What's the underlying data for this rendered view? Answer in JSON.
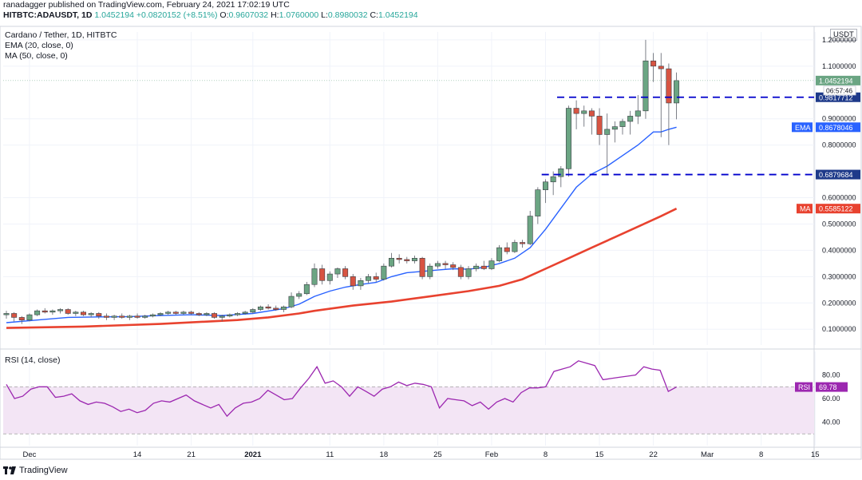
{
  "header": {
    "author_line": "ranadagger published on TradingView.com, February 24, 2021 17:02:19 UTC",
    "symbol": "HITBTC:ADAUSDT, 1D",
    "close": "1.0452194",
    "change": "+0.0820152 (+8.51%)",
    "o_label": "O:",
    "o_value": "0.9607032",
    "h_label": "H:",
    "h_value": "1.0760000",
    "l_label": "L:",
    "l_value": "0.8980032",
    "c_label": "C:",
    "c_value": "1.0452194"
  },
  "legend": {
    "title": "Cardano / Tether, 1D, HITBTC",
    "ema": "EMA (20, close, 0)",
    "ma": "MA (50, close, 0)",
    "rsi": "RSI (14, close)",
    "currency": "USDT"
  },
  "footer": {
    "brand": "TradingView"
  },
  "colors": {
    "up": "#26a69a",
    "up_body": "#6ba583",
    "down": "#d75442",
    "ema": "#2962ff",
    "ma": "#e8422f",
    "rsi": "#9c27b0",
    "rsi_band": "#f3e5f5",
    "dashed": "#0000cc",
    "axis_label_bg": "#1e3a8a"
  },
  "chart_data": [
    {
      "type": "candlestick",
      "title": "Cardano / Tether, 1D, HITBTC",
      "ylabel": "USDT",
      "ylim": [
        0.04,
        1.23
      ],
      "price_ticks": [
        "1.2000000",
        "1.1000000",
        "0.9000000",
        "0.8000000",
        "0.6000000",
        "0.5000000",
        "0.4000000",
        "0.3000000",
        "0.2000000",
        "0.1000000"
      ],
      "price_tick_values": [
        1.2,
        1.1,
        0.9,
        0.8,
        0.6,
        0.5,
        0.4,
        0.3,
        0.2,
        0.1
      ],
      "x_ticks": [
        "Dec",
        "14",
        "21",
        "2021",
        "11",
        "18",
        "25",
        "Feb",
        "8",
        "15",
        "22",
        "Mar",
        "8",
        "15"
      ],
      "x_tick_days": [
        3,
        17,
        24,
        32,
        42,
        49,
        56,
        63,
        70,
        77,
        84,
        91,
        98,
        105
      ],
      "candles": [
        [
          0,
          0.155,
          0.17,
          0.14,
          0.16
        ],
        [
          1,
          0.16,
          0.165,
          0.13,
          0.145
        ],
        [
          2,
          0.145,
          0.15,
          0.12,
          0.135
        ],
        [
          3,
          0.135,
          0.16,
          0.13,
          0.155
        ],
        [
          4,
          0.155,
          0.175,
          0.15,
          0.17
        ],
        [
          5,
          0.17,
          0.18,
          0.16,
          0.165
        ],
        [
          6,
          0.165,
          0.175,
          0.155,
          0.17
        ],
        [
          7,
          0.17,
          0.18,
          0.16,
          0.175
        ],
        [
          8,
          0.175,
          0.18,
          0.155,
          0.16
        ],
        [
          9,
          0.16,
          0.17,
          0.15,
          0.165
        ],
        [
          10,
          0.165,
          0.17,
          0.15,
          0.155
        ],
        [
          11,
          0.155,
          0.165,
          0.145,
          0.16
        ],
        [
          12,
          0.16,
          0.165,
          0.14,
          0.15
        ],
        [
          13,
          0.15,
          0.16,
          0.135,
          0.145
        ],
        [
          14,
          0.145,
          0.155,
          0.135,
          0.15
        ],
        [
          15,
          0.15,
          0.16,
          0.14,
          0.145
        ],
        [
          16,
          0.145,
          0.155,
          0.135,
          0.15
        ],
        [
          17,
          0.15,
          0.16,
          0.14,
          0.145
        ],
        [
          18,
          0.145,
          0.155,
          0.14,
          0.15
        ],
        [
          19,
          0.15,
          0.16,
          0.145,
          0.155
        ],
        [
          20,
          0.155,
          0.165,
          0.15,
          0.16
        ],
        [
          21,
          0.16,
          0.17,
          0.155,
          0.165
        ],
        [
          22,
          0.165,
          0.17,
          0.155,
          0.16
        ],
        [
          23,
          0.16,
          0.17,
          0.155,
          0.165
        ],
        [
          24,
          0.165,
          0.17,
          0.155,
          0.16
        ],
        [
          25,
          0.16,
          0.165,
          0.15,
          0.155
        ],
        [
          26,
          0.155,
          0.165,
          0.15,
          0.16
        ],
        [
          27,
          0.16,
          0.165,
          0.14,
          0.145
        ],
        [
          28,
          0.145,
          0.155,
          0.13,
          0.15
        ],
        [
          29,
          0.15,
          0.16,
          0.145,
          0.155
        ],
        [
          30,
          0.155,
          0.165,
          0.15,
          0.16
        ],
        [
          31,
          0.16,
          0.17,
          0.155,
          0.165
        ],
        [
          32,
          0.165,
          0.18,
          0.16,
          0.175
        ],
        [
          33,
          0.175,
          0.19,
          0.17,
          0.185
        ],
        [
          34,
          0.185,
          0.195,
          0.175,
          0.18
        ],
        [
          35,
          0.18,
          0.19,
          0.17,
          0.175
        ],
        [
          36,
          0.175,
          0.19,
          0.165,
          0.185
        ],
        [
          37,
          0.185,
          0.24,
          0.18,
          0.225
        ],
        [
          38,
          0.225,
          0.245,
          0.215,
          0.235
        ],
        [
          39,
          0.235,
          0.28,
          0.23,
          0.27
        ],
        [
          40,
          0.27,
          0.35,
          0.26,
          0.33
        ],
        [
          41,
          0.33,
          0.345,
          0.27,
          0.285
        ],
        [
          42,
          0.285,
          0.32,
          0.27,
          0.31
        ],
        [
          43,
          0.31,
          0.335,
          0.295,
          0.33
        ],
        [
          44,
          0.33,
          0.34,
          0.29,
          0.3
        ],
        [
          45,
          0.3,
          0.31,
          0.25,
          0.265
        ],
        [
          46,
          0.265,
          0.295,
          0.25,
          0.285
        ],
        [
          47,
          0.285,
          0.31,
          0.275,
          0.3
        ],
        [
          48,
          0.3,
          0.315,
          0.28,
          0.29
        ],
        [
          49,
          0.29,
          0.35,
          0.285,
          0.34
        ],
        [
          50,
          0.34,
          0.39,
          0.335,
          0.37
        ],
        [
          51,
          0.37,
          0.385,
          0.35,
          0.365
        ],
        [
          52,
          0.365,
          0.375,
          0.35,
          0.36
        ],
        [
          53,
          0.36,
          0.38,
          0.35,
          0.37
        ],
        [
          54,
          0.37,
          0.375,
          0.29,
          0.3
        ],
        [
          55,
          0.3,
          0.35,
          0.29,
          0.34
        ],
        [
          56,
          0.34,
          0.36,
          0.33,
          0.35
        ],
        [
          57,
          0.35,
          0.36,
          0.33,
          0.345
        ],
        [
          58,
          0.345,
          0.355,
          0.325,
          0.335
        ],
        [
          59,
          0.335,
          0.345,
          0.29,
          0.3
        ],
        [
          60,
          0.3,
          0.34,
          0.29,
          0.33
        ],
        [
          61,
          0.33,
          0.35,
          0.32,
          0.34
        ],
        [
          62,
          0.34,
          0.36,
          0.325,
          0.33
        ],
        [
          63,
          0.33,
          0.37,
          0.325,
          0.36
        ],
        [
          64,
          0.36,
          0.42,
          0.355,
          0.41
        ],
        [
          65,
          0.41,
          0.43,
          0.385,
          0.395
        ],
        [
          66,
          0.395,
          0.44,
          0.39,
          0.43
        ],
        [
          67,
          0.43,
          0.44,
          0.41,
          0.425
        ],
        [
          68,
          0.425,
          0.55,
          0.42,
          0.53
        ],
        [
          69,
          0.53,
          0.64,
          0.5,
          0.63
        ],
        [
          70,
          0.63,
          0.67,
          0.58,
          0.66
        ],
        [
          71,
          0.66,
          0.7,
          0.61,
          0.68
        ],
        [
          72,
          0.68,
          0.72,
          0.64,
          0.71
        ],
        [
          73,
          0.71,
          0.95,
          0.68,
          0.94
        ],
        [
          74,
          0.94,
          0.97,
          0.86,
          0.92
        ],
        [
          75,
          0.92,
          0.95,
          0.87,
          0.93
        ],
        [
          76,
          0.93,
          0.94,
          0.84,
          0.91
        ],
        [
          77,
          0.91,
          0.94,
          0.8,
          0.84
        ],
        [
          78,
          0.84,
          0.92,
          0.69,
          0.86
        ],
        [
          79,
          0.86,
          0.89,
          0.81,
          0.87
        ],
        [
          80,
          0.87,
          0.9,
          0.84,
          0.89
        ],
        [
          81,
          0.89,
          0.93,
          0.84,
          0.91
        ],
        [
          82,
          0.91,
          0.99,
          0.88,
          0.93
        ],
        [
          83,
          0.93,
          1.2,
          0.9,
          1.12
        ],
        [
          84,
          1.12,
          1.15,
          1.04,
          1.1
        ],
        [
          85,
          1.1,
          1.15,
          0.83,
          1.09
        ],
        [
          86,
          1.09,
          1.11,
          0.8,
          0.96
        ],
        [
          87,
          0.96,
          1.076,
          0.898,
          1.0452194
        ]
      ],
      "ema_20": [
        [
          0,
          0.125
        ],
        [
          4,
          0.135
        ],
        [
          8,
          0.145
        ],
        [
          12,
          0.147
        ],
        [
          16,
          0.148
        ],
        [
          20,
          0.152
        ],
        [
          24,
          0.155
        ],
        [
          28,
          0.152
        ],
        [
          32,
          0.16
        ],
        [
          36,
          0.178
        ],
        [
          38,
          0.195
        ],
        [
          40,
          0.225
        ],
        [
          42,
          0.245
        ],
        [
          44,
          0.26
        ],
        [
          46,
          0.27
        ],
        [
          48,
          0.278
        ],
        [
          50,
          0.3
        ],
        [
          52,
          0.315
        ],
        [
          54,
          0.32
        ],
        [
          56,
          0.325
        ],
        [
          58,
          0.33
        ],
        [
          60,
          0.328
        ],
        [
          62,
          0.335
        ],
        [
          64,
          0.35
        ],
        [
          66,
          0.37
        ],
        [
          68,
          0.41
        ],
        [
          70,
          0.48
        ],
        [
          72,
          0.56
        ],
        [
          74,
          0.64
        ],
        [
          76,
          0.69
        ],
        [
          78,
          0.72
        ],
        [
          80,
          0.76
        ],
        [
          82,
          0.8
        ],
        [
          84,
          0.85
        ],
        [
          85,
          0.85
        ],
        [
          86,
          0.86
        ],
        [
          87,
          0.8678046
        ]
      ],
      "ma_50": [
        [
          0,
          0.105
        ],
        [
          10,
          0.11
        ],
        [
          20,
          0.12
        ],
        [
          30,
          0.135
        ],
        [
          34,
          0.145
        ],
        [
          38,
          0.16
        ],
        [
          40,
          0.17
        ],
        [
          45,
          0.19
        ],
        [
          50,
          0.205
        ],
        [
          55,
          0.225
        ],
        [
          60,
          0.245
        ],
        [
          64,
          0.265
        ],
        [
          67,
          0.29
        ],
        [
          70,
          0.33
        ],
        [
          73,
          0.37
        ],
        [
          76,
          0.41
        ],
        [
          79,
          0.45
        ],
        [
          82,
          0.49
        ],
        [
          85,
          0.53
        ],
        [
          87,
          0.5585122
        ]
      ],
      "horizontal_levels": [
        {
          "value": 0.9817712,
          "label": "0.9817712",
          "style": "dashed"
        },
        {
          "value": 0.6879684,
          "label": "0.6879684",
          "style": "dashed"
        }
      ],
      "price_labels": [
        {
          "value": 1.0452194,
          "label": "1.0452194",
          "countdown": "06:57:46",
          "kind": "last"
        },
        {
          "value": 0.8678046,
          "label": "0.8678046",
          "tag": "EMA",
          "kind": "ema"
        },
        {
          "value": 0.5585122,
          "label": "0.5585122",
          "tag": "MA",
          "kind": "ma"
        }
      ]
    },
    {
      "type": "line",
      "title": "RSI (14, close)",
      "ylim": [
        20,
        100
      ],
      "y_ticks": [
        "80.00",
        "60.00",
        "40.00"
      ],
      "y_tick_values": [
        80,
        60,
        40
      ],
      "bands": [
        70,
        30
      ],
      "last_label": {
        "tag": "RSI",
        "label": "69.78",
        "value": 69.78
      },
      "rsi": [
        [
          0,
          72
        ],
        [
          1,
          60
        ],
        [
          2,
          62
        ],
        [
          3,
          68
        ],
        [
          4,
          70
        ],
        [
          5,
          70
        ],
        [
          6,
          61
        ],
        [
          7,
          62
        ],
        [
          8,
          64
        ],
        [
          9,
          58
        ],
        [
          10,
          55
        ],
        [
          11,
          57
        ],
        [
          12,
          56
        ],
        [
          13,
          53
        ],
        [
          14,
          49
        ],
        [
          15,
          51
        ],
        [
          16,
          48
        ],
        [
          17,
          50
        ],
        [
          18,
          56
        ],
        [
          19,
          58
        ],
        [
          20,
          57
        ],
        [
          21,
          60
        ],
        [
          22,
          63
        ],
        [
          23,
          58
        ],
        [
          24,
          55
        ],
        [
          25,
          52
        ],
        [
          26,
          55
        ],
        [
          27,
          45
        ],
        [
          28,
          52
        ],
        [
          29,
          56
        ],
        [
          30,
          57
        ],
        [
          31,
          60
        ],
        [
          32,
          67
        ],
        [
          33,
          63
        ],
        [
          34,
          59
        ],
        [
          35,
          60
        ],
        [
          36,
          69
        ],
        [
          37,
          77
        ],
        [
          38,
          87
        ],
        [
          39,
          73
        ],
        [
          40,
          75
        ],
        [
          41,
          70
        ],
        [
          42,
          62
        ],
        [
          43,
          70
        ],
        [
          44,
          66
        ],
        [
          45,
          62
        ],
        [
          46,
          68
        ],
        [
          47,
          70
        ],
        [
          48,
          74
        ],
        [
          49,
          71
        ],
        [
          50,
          73
        ],
        [
          51,
          72
        ],
        [
          52,
          70
        ],
        [
          53,
          52
        ],
        [
          54,
          60
        ],
        [
          55,
          59
        ],
        [
          56,
          58
        ],
        [
          57,
          54
        ],
        [
          58,
          57
        ],
        [
          59,
          51
        ],
        [
          60,
          57
        ],
        [
          61,
          60
        ],
        [
          62,
          57
        ],
        [
          63,
          65
        ],
        [
          64,
          69
        ],
        [
          65,
          69
        ],
        [
          66,
          70
        ],
        [
          67,
          83
        ],
        [
          68,
          85
        ],
        [
          69,
          87
        ],
        [
          70,
          92
        ],
        [
          71,
          90
        ],
        [
          72,
          88
        ],
        [
          73,
          76
        ],
        [
          74,
          77
        ],
        [
          75,
          78
        ],
        [
          76,
          79
        ],
        [
          77,
          80
        ],
        [
          78,
          87
        ],
        [
          79,
          85
        ],
        [
          80,
          84
        ],
        [
          81,
          66
        ],
        [
          82,
          69.78
        ]
      ]
    }
  ]
}
